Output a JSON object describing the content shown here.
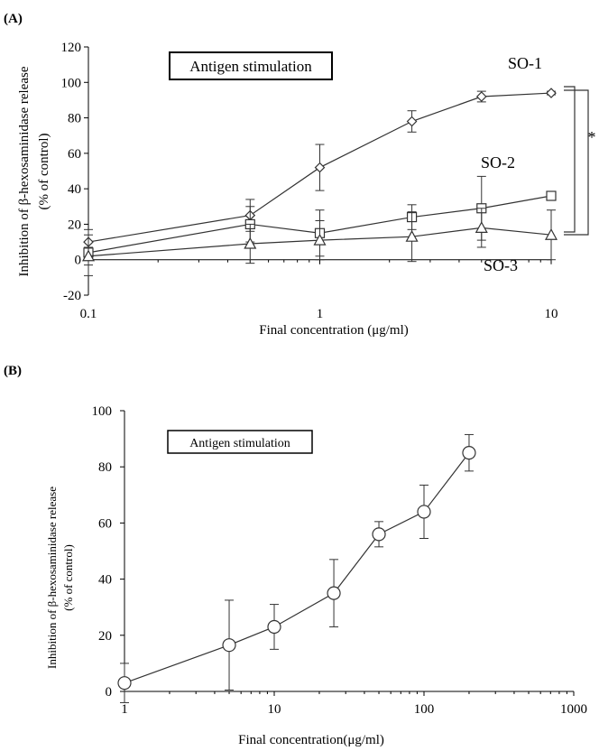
{
  "chart_data": [
    {
      "panel_label": "(A)",
      "type": "line",
      "x_scale": "log",
      "xlim": [
        0.1,
        10
      ],
      "ylim": [
        -20,
        120
      ],
      "x_ticks": [
        0.1,
        1,
        10
      ],
      "x_tick_labels": [
        "0.1",
        "1",
        "10"
      ],
      "y_ticks": [
        -20,
        0,
        20,
        40,
        60,
        80,
        100,
        120
      ],
      "y_tick_labels": [
        "-20",
        "0",
        "20",
        "40",
        "60",
        "80",
        "100",
        "120"
      ],
      "xlabel": "Final concentration (μg/ml)",
      "ylabel_line1": "Inhibition of β-hexosaminidase release",
      "ylabel_line2": "(% of control)",
      "annotation": "Antigen stimulation",
      "significance": "*",
      "series": [
        {
          "name": "SO-1",
          "marker": "diamond",
          "x": [
            0.1,
            0.5,
            1,
            2.5,
            5,
            10
          ],
          "y": [
            10,
            25,
            52,
            78,
            92,
            94
          ],
          "err": [
            4,
            9,
            13,
            6,
            3,
            1
          ]
        },
        {
          "name": "SO-2",
          "marker": "square",
          "x": [
            0.1,
            0.5,
            1,
            2.5,
            5,
            10
          ],
          "y": [
            4,
            20,
            15,
            24,
            29,
            36
          ],
          "err": [
            13,
            10,
            13,
            7,
            18,
            1
          ]
        },
        {
          "name": "SO-3",
          "marker": "triangle",
          "x": [
            0.1,
            0.5,
            1,
            2.5,
            5,
            10
          ],
          "y": [
            2,
            9,
            11,
            13,
            18,
            14
          ],
          "err": [
            5,
            11,
            11,
            14,
            11,
            14
          ]
        }
      ]
    },
    {
      "panel_label": "(B)",
      "type": "line",
      "x_scale": "log",
      "xlim": [
        1,
        1000
      ],
      "ylim": [
        0,
        100
      ],
      "x_ticks": [
        1,
        10,
        100,
        1000
      ],
      "x_tick_labels": [
        "1",
        "10",
        "100",
        "1000"
      ],
      "y_ticks": [
        0,
        20,
        40,
        60,
        80,
        100
      ],
      "y_tick_labels": [
        "0",
        "20",
        "40",
        "60",
        "80",
        "100"
      ],
      "xlabel": "Final concentration(μg/ml)",
      "ylabel_line1": "Inhibition of β-hexosaminidase release",
      "ylabel_line2": "(% of control)",
      "annotation": "Antigen stimulation",
      "series": [
        {
          "name": "",
          "marker": "circle",
          "x": [
            1,
            5,
            10,
            25,
            50,
            100,
            200
          ],
          "y": [
            3,
            16.5,
            23,
            35,
            56,
            64,
            85
          ],
          "err": [
            7,
            16,
            8,
            12,
            4.5,
            9.5,
            6.5
          ]
        }
      ]
    }
  ]
}
